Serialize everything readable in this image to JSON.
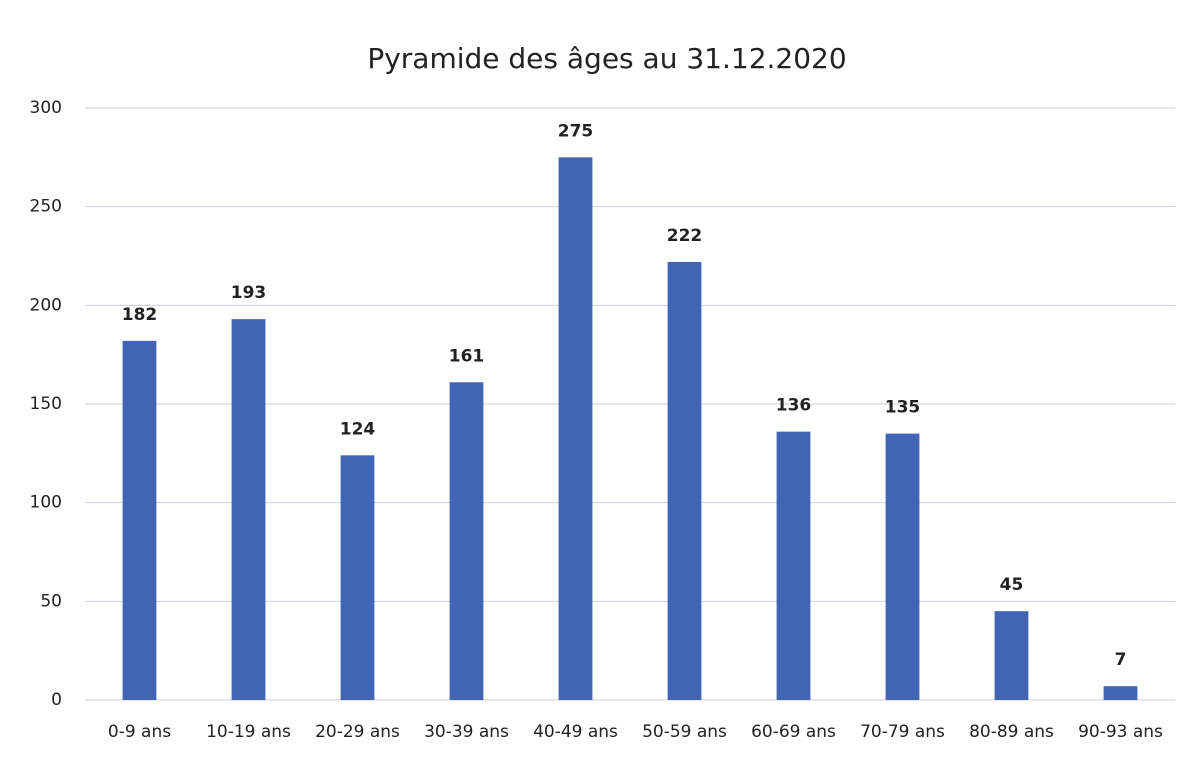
{
  "chart_data": {
    "type": "bar",
    "title": "Pyramide des âges au 31.12.2020",
    "categories": [
      "0-9 ans",
      "10-19 ans",
      "20-29 ans",
      "30-39 ans",
      "40-49 ans",
      "50-59 ans",
      "60-69 ans",
      "70-79 ans",
      "80-89 ans",
      "90-93 ans"
    ],
    "values": [
      182,
      193,
      124,
      161,
      275,
      222,
      136,
      135,
      45,
      7
    ],
    "color": "#4264b4",
    "ylim": [
      0,
      300
    ],
    "yticks": [
      0,
      50,
      100,
      150,
      200,
      250,
      300
    ],
    "grid": true
  }
}
